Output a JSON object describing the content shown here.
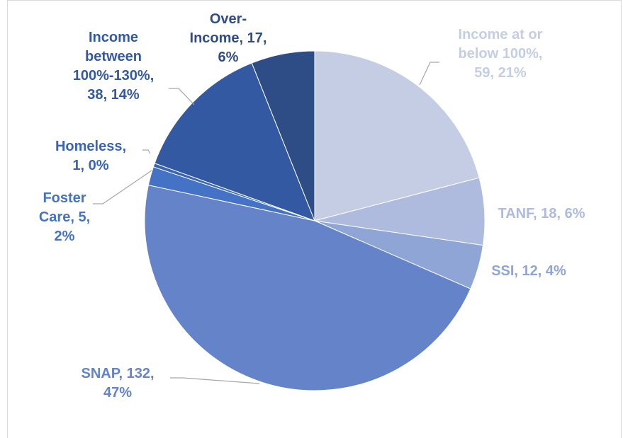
{
  "chart_data": {
    "type": "pie",
    "title": "",
    "slices": [
      {
        "category": "Income at or below 100%",
        "value": 59,
        "percent": "21%",
        "color": "#c5cde5",
        "label_color": "#c5cde5",
        "label_lines": [
          "Income at or",
          "below 100%,",
          "59, 21%"
        ]
      },
      {
        "category": "TANF",
        "value": 18,
        "percent": "6%",
        "color": "#aebbdf",
        "label_color": "#aebbdf",
        "label_lines": [
          "TANF, 18, 6%"
        ]
      },
      {
        "category": "SSI",
        "value": 12,
        "percent": "4%",
        "color": "#8fa5d6",
        "label_color": "#8fa5d6",
        "label_lines": [
          "SSI, 12, 4%"
        ]
      },
      {
        "category": "SNAP",
        "value": 132,
        "percent": "47%",
        "color": "#6483c8",
        "label_color": "#6483c8",
        "label_lines": [
          "SNAP, 132,",
          "47%"
        ]
      },
      {
        "category": "Foster Care",
        "value": 5,
        "percent": "2%",
        "color": "#4472c4",
        "label_color": "#4472c4",
        "label_lines": [
          "Foster",
          "Care, 5,",
          "2%"
        ]
      },
      {
        "category": "Homeless",
        "value": 1,
        "percent": "0%",
        "color": "#3a64b4",
        "label_color": "#3a64b4",
        "label_lines": [
          "Homeless,",
          "1, 0%"
        ]
      },
      {
        "category": "Income between 100%-130%",
        "value": 38,
        "percent": "14%",
        "color": "#3359a2",
        "label_color": "#3359a2",
        "label_lines": [
          "Income",
          "between",
          "100%-130%,",
          "38, 14%"
        ]
      },
      {
        "category": "Over-Income",
        "value": 17,
        "percent": "6%",
        "color": "#2e4d87",
        "label_color": "#2e4d87",
        "label_lines": [
          "Over-",
          "Income, 17,",
          "6%"
        ]
      }
    ],
    "legend": "none"
  }
}
